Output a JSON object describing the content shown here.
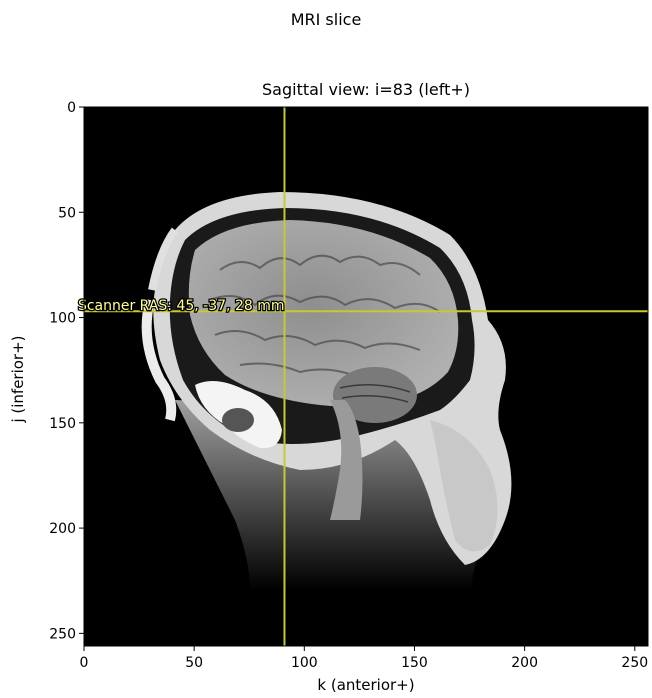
{
  "figure": {
    "suptitle": "MRI slice",
    "axes_title": "Sagittal view: i=83 (left+)",
    "xlabel": "k (anterior+)",
    "ylabel": "j (inferior+)",
    "xticks": [
      0,
      50,
      100,
      150,
      200,
      250
    ],
    "yticks": [
      0,
      50,
      100,
      150,
      200,
      250
    ],
    "xlim": [
      0,
      256
    ],
    "ylim": [
      256,
      0
    ],
    "crosshair": {
      "k": 91,
      "j": 97,
      "color": "#c8c832"
    },
    "annotation": "Scanner RAS: 45, -37, 28 mm",
    "annotation_color": "#ffff99",
    "image_background": "#000000",
    "colormap": "gray"
  }
}
